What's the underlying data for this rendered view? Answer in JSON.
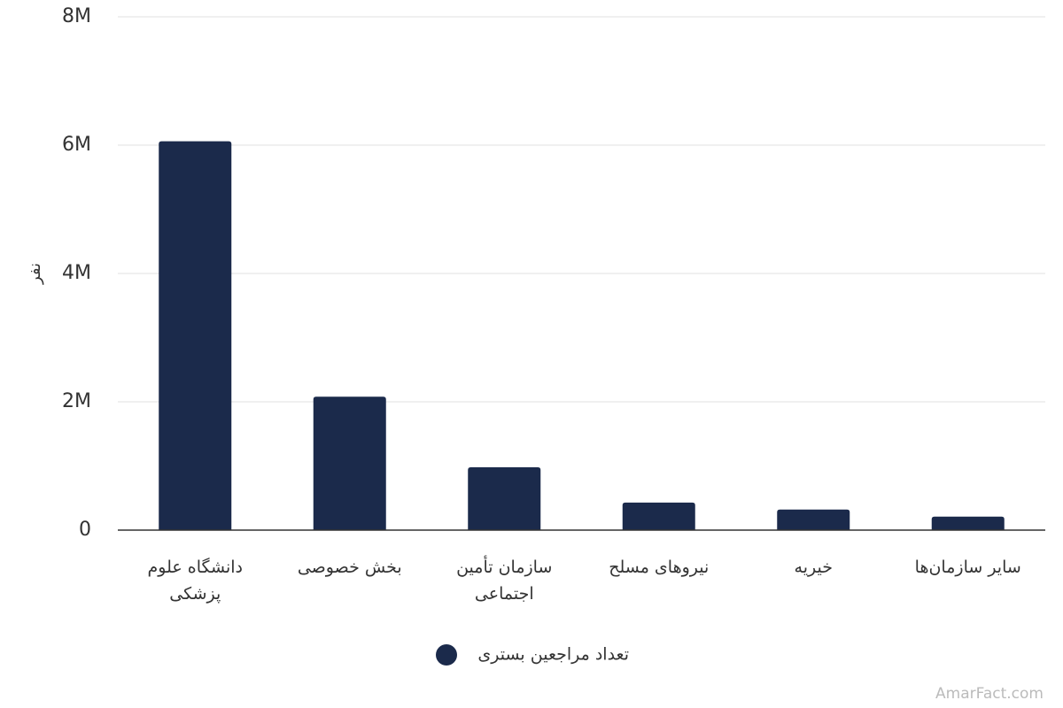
{
  "chart_data": {
    "type": "bar",
    "y_label": "نفر",
    "categories": [
      "دانشگاه علوم پزشکی",
      "بخش خصوصی",
      "سازمان تأمین اجتماعی",
      "نیروهای مسلح",
      "خیریه",
      "سایر سازمان‌ها"
    ],
    "series": [
      {
        "name": "تعداد مراجعین بستری",
        "color": "#1b2a4b",
        "values": [
          6060000,
          2080000,
          980000,
          430000,
          320000,
          210000
        ]
      }
    ],
    "ylim": [
      0,
      8000000
    ],
    "yticks": [
      0,
      {
        "value": 2000000,
        "label": "2M"
      },
      {
        "value": 4000000,
        "label": "4M"
      },
      {
        "value": 6000000,
        "label": "6M"
      },
      {
        "value": 8000000,
        "label": "8M"
      }
    ],
    "grid": true,
    "watermark": "AmarFact.com"
  }
}
